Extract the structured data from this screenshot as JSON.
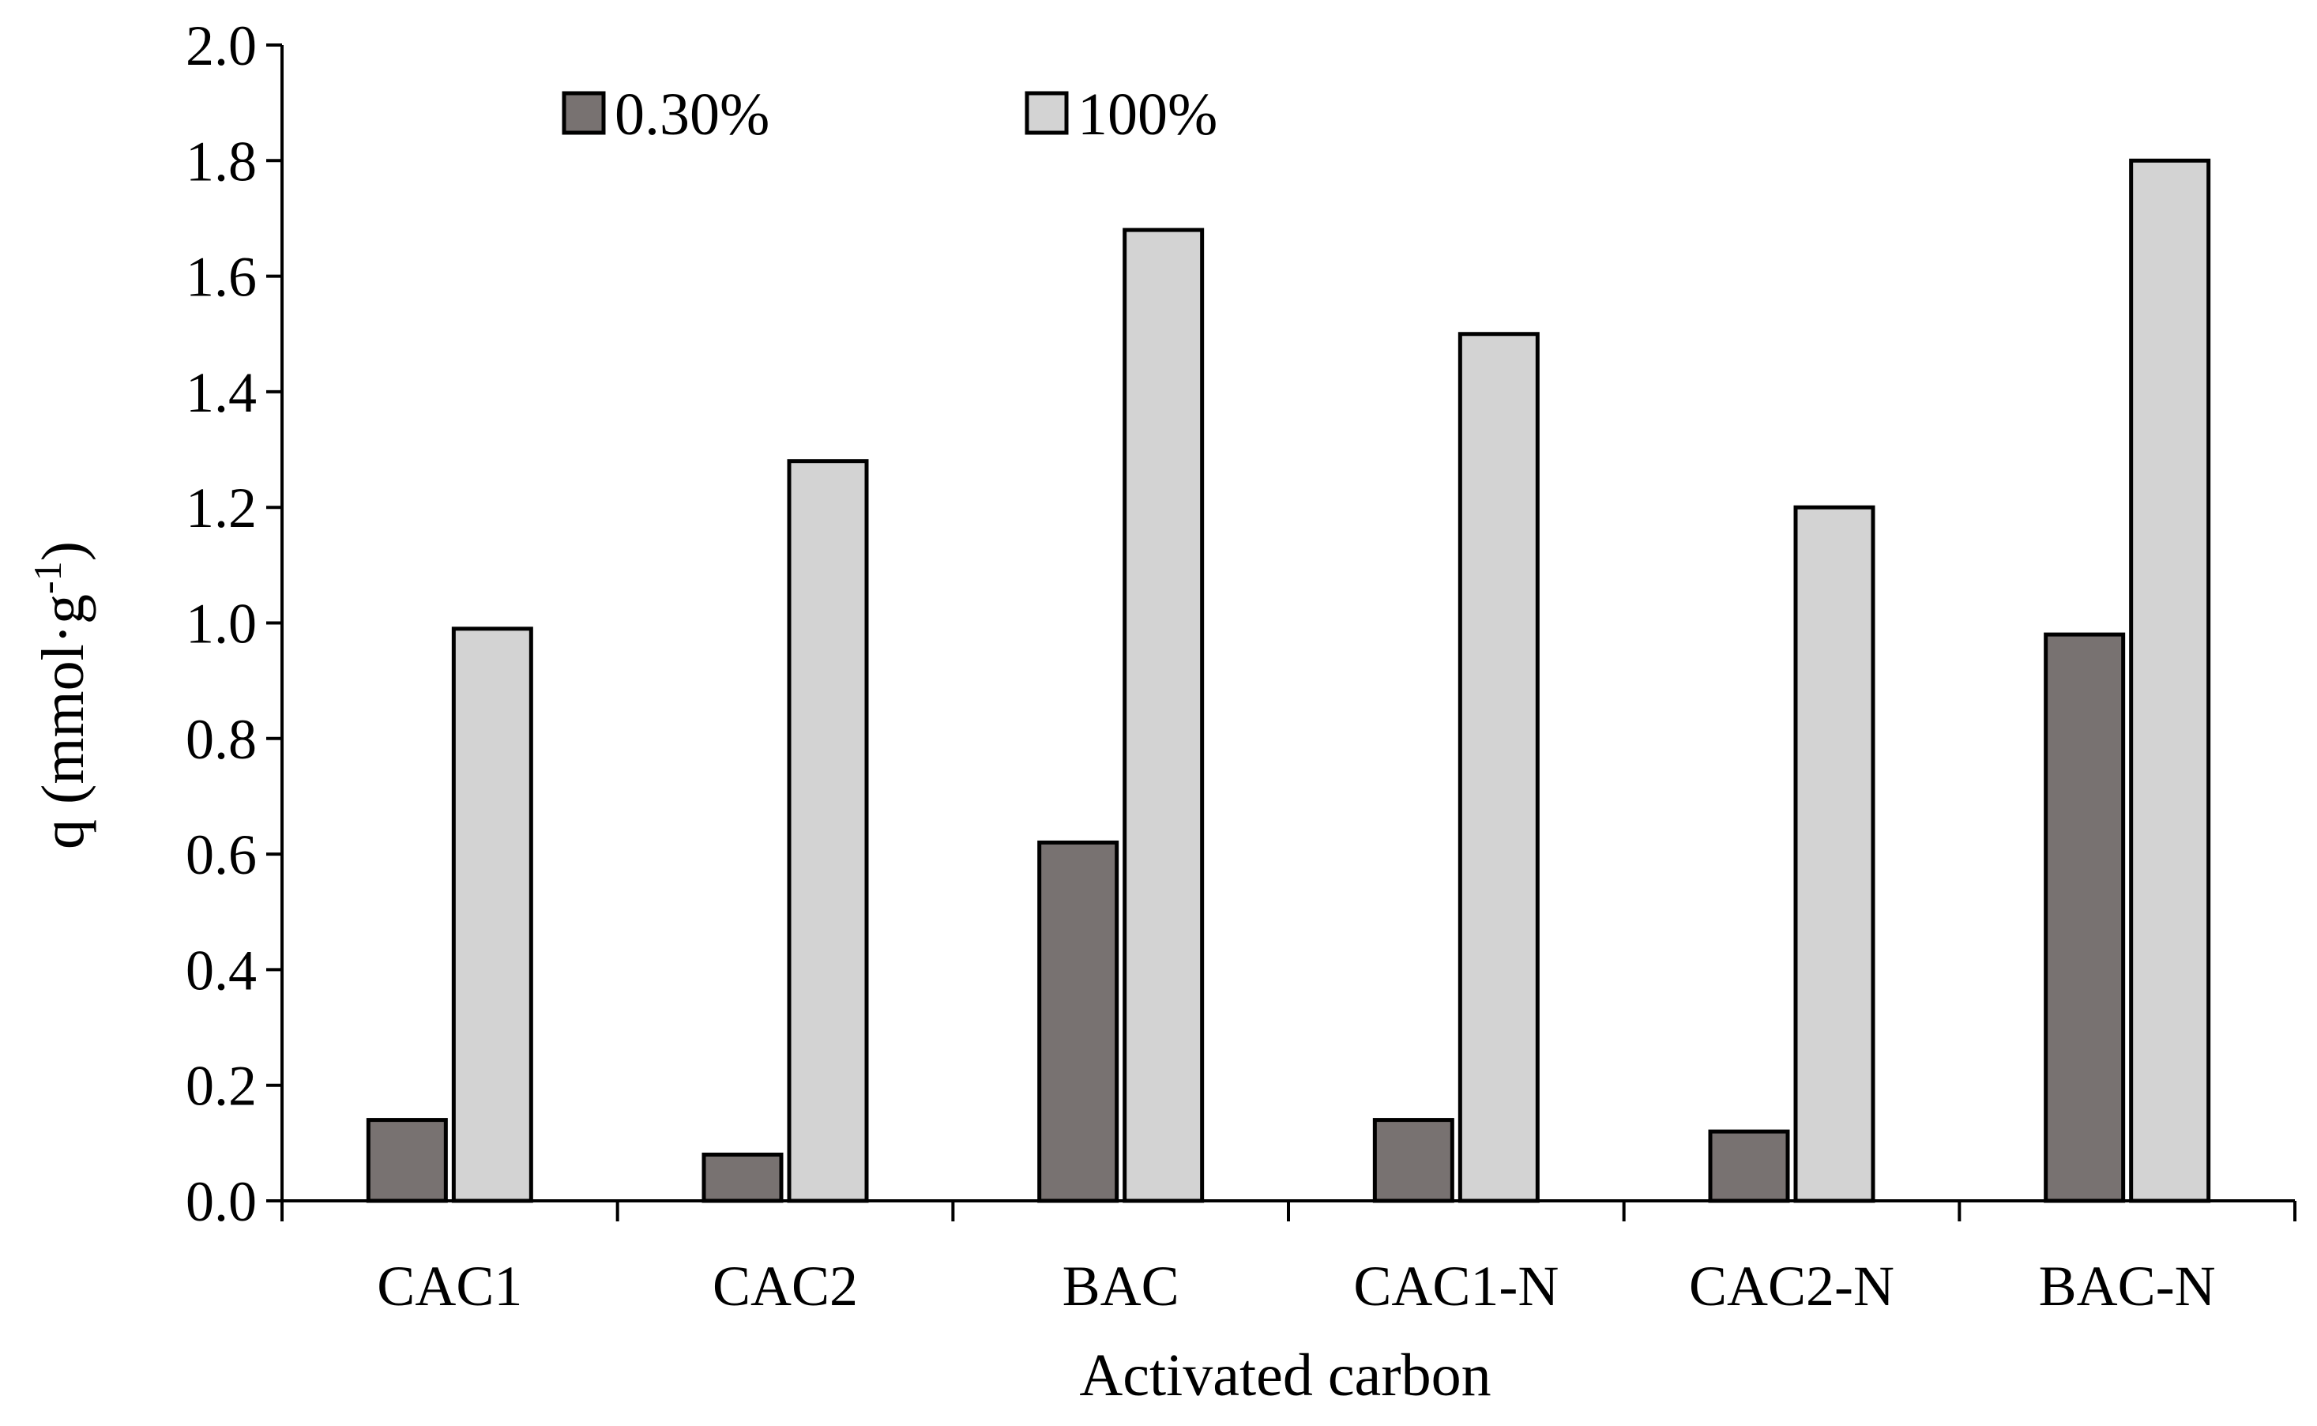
{
  "chart_data": {
    "type": "bar",
    "title": "",
    "xlabel": "Activated carbon",
    "ylabel": {
      "base": "q (mmol·g",
      "sup": "-1",
      "close": ")"
    },
    "ylim": [
      0,
      2.0
    ],
    "ytick_step": 0.2,
    "ytick_labels": [
      "0.0",
      "0.2",
      "0.4",
      "0.6",
      "0.8",
      "1.0",
      "1.2",
      "1.4",
      "1.6",
      "1.8",
      "2.0"
    ],
    "categories": [
      "CAC1",
      "CAC2",
      "BAC",
      "CAC1-N",
      "CAC2-N",
      "BAC-N"
    ],
    "series": [
      {
        "name": "0.30%",
        "color": "#787271",
        "values": [
          0.14,
          0.08,
          0.62,
          0.14,
          0.12,
          0.98
        ]
      },
      {
        "name": "100%",
        "color": "#d3d3d3",
        "values": [
          0.99,
          1.28,
          1.68,
          1.5,
          1.2,
          1.8
        ]
      }
    ],
    "grid": false,
    "legend_position": "top-left"
  }
}
